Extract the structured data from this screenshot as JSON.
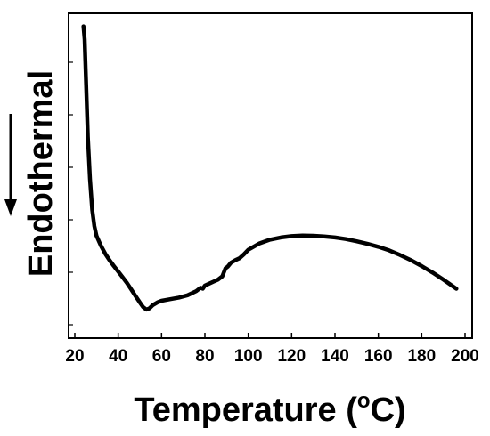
{
  "chart_data": {
    "type": "line",
    "title": "",
    "xlabel": "Temperature (",
    "xlabel_unit_sup": "o",
    "xlabel_unit": "C)",
    "ylabel": "Endothermal",
    "ylabel_direction": "down",
    "xlim": [
      20,
      200
    ],
    "x_ticks": [
      "20",
      "40",
      "60",
      "80",
      "100",
      "120",
      "140",
      "160",
      "180",
      "200"
    ],
    "y_ticks_labeled": false,
    "grid": false,
    "legend": "none",
    "line_color": "#000000",
    "series": [
      {
        "x": [
          24.0,
          24.5,
          25.2,
          26.0,
          27.0,
          28.0,
          29.0,
          30.0,
          32.0,
          34.0,
          36.0,
          38.0,
          40.0,
          42.0,
          44.0,
          46.0,
          48.0,
          50.0,
          51.5,
          53.0,
          54.5,
          56.0,
          58.0,
          60.0,
          64.0,
          68.0,
          72.0,
          76.0,
          78.0,
          79.0,
          80.0,
          82.0,
          84.0,
          86.0,
          88.0,
          89.5,
          90.5,
          92.0,
          94.0,
          96.0,
          98.0,
          100.0,
          105.0,
          110.0,
          115.0,
          120.0,
          125.0,
          130.0,
          135.0,
          140.0,
          145.0,
          150.0,
          155.0,
          160.0,
          165.0,
          170.0,
          175.0,
          180.0,
          185.0,
          190.0,
          193.0,
          196.0
        ],
        "y": [
          0.96,
          0.92,
          0.78,
          0.62,
          0.49,
          0.395,
          0.345,
          0.315,
          0.285,
          0.26,
          0.24,
          0.222,
          0.205,
          0.188,
          0.17,
          0.15,
          0.13,
          0.11,
          0.096,
          0.088,
          0.092,
          0.102,
          0.11,
          0.115,
          0.12,
          0.125,
          0.132,
          0.145,
          0.155,
          0.152,
          0.162,
          0.168,
          0.174,
          0.18,
          0.19,
          0.215,
          0.22,
          0.232,
          0.24,
          0.246,
          0.258,
          0.272,
          0.291,
          0.303,
          0.31,
          0.314,
          0.316,
          0.315,
          0.313,
          0.31,
          0.305,
          0.298,
          0.29,
          0.281,
          0.27,
          0.256,
          0.24,
          0.222,
          0.202,
          0.18,
          0.166,
          0.152
        ]
      }
    ]
  }
}
